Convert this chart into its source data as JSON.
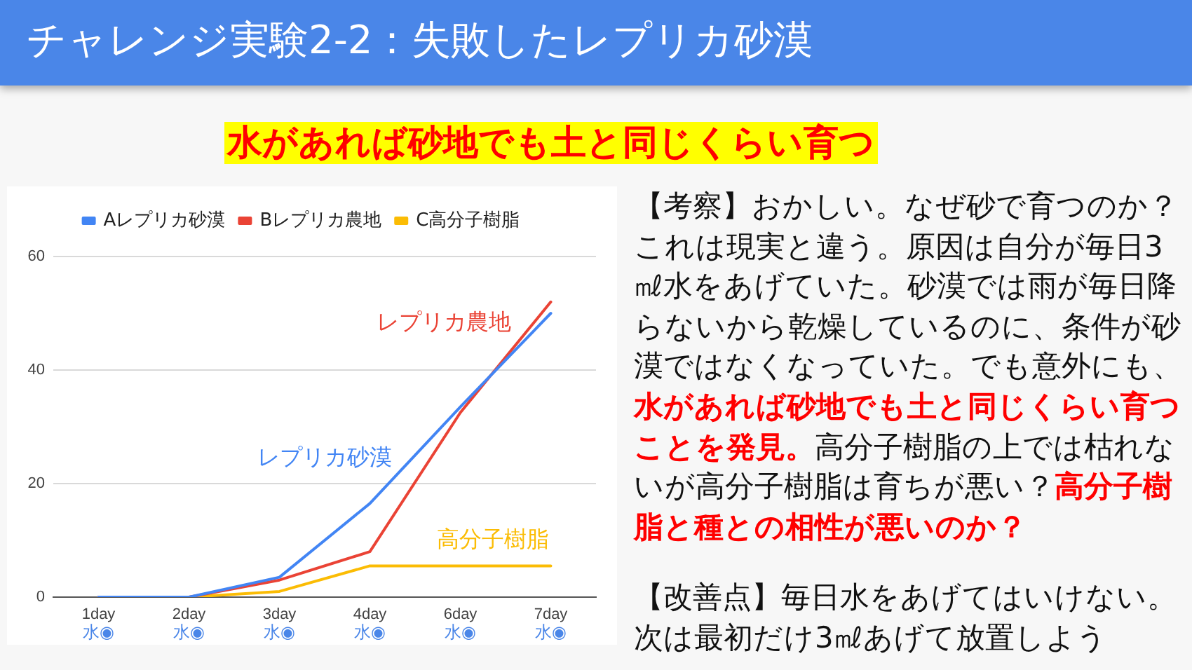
{
  "chart_data": {
    "type": "line",
    "title": "チャレンジ実験2-2：失敗したレプリカ砂漠",
    "subtitle": "水があれば砂地でも土と同じくらい育つ",
    "categories": [
      "1day",
      "2day",
      "3day",
      "4day",
      "6day",
      "7day"
    ],
    "series": [
      {
        "name": "Aレプリカ砂漠",
        "color": "#4285f4",
        "values": [
          0,
          0,
          3.5,
          16.5,
          33.5,
          50
        ]
      },
      {
        "name": "Bレプリカ農地",
        "color": "#ea4335",
        "values": [
          0,
          0,
          3,
          8,
          32.5,
          52
        ]
      },
      {
        "name": "C高分子樹脂",
        "color": "#fbbc04",
        "values": [
          0,
          0,
          1,
          5.5,
          5.5,
          5.5
        ]
      }
    ],
    "ylim": [
      0,
      60
    ],
    "yticks": [
      0,
      20,
      40,
      60
    ],
    "grid": "y",
    "legend": "top",
    "marker": "none",
    "annotations": [
      "レプリカ砂漠",
      "レプリカ農地",
      "高分子樹脂",
      "水◉",
      "水◉",
      "水◉",
      "水◉",
      "水◉",
      "水◉",
      "【考察】おかしい。なぜ砂で育つのか？これは現実と違う。原因は自分が毎日3㎖水をあげていた。砂漠では雨が毎日降らないから乾燥しているのに、条件が砂漠ではなくなっていた。でも意外にも、",
      "水があれば砂地でも土と同じくらい育つ",
      "ことを発見。",
      "高分子樹脂の上では枯れな",
      "いが高分子樹脂は育ちが悪い？",
      "高分子樹",
      "脂と種との相性が悪いのか？",
      "【改善点】毎日水をあげてはいけない。次は最初だけ3㎖あげて放置しよう"
    ]
  }
}
